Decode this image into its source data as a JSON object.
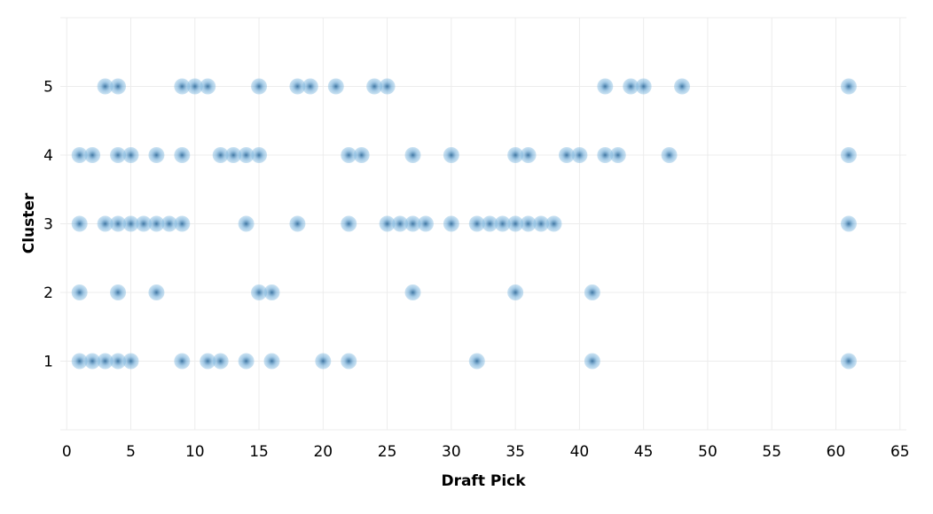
{
  "chart_data": {
    "type": "scatter",
    "title": "",
    "xlabel": "Draft Pick",
    "ylabel": "Cluster",
    "xlim": [
      -0.5,
      65.5
    ],
    "ylim": [
      0,
      6
    ],
    "xticks": [
      0,
      5,
      10,
      15,
      20,
      25,
      30,
      35,
      40,
      45,
      50,
      55,
      60,
      65
    ],
    "yticks": [
      1,
      2,
      3,
      4,
      5
    ],
    "grid": true,
    "point_color": "#5b9fd1",
    "series": [
      {
        "cluster": 1,
        "x": [
          1,
          2,
          3,
          4,
          5,
          9,
          11,
          12,
          14,
          16,
          20,
          22,
          32,
          41,
          61
        ]
      },
      {
        "cluster": 2,
        "x": [
          1,
          4,
          7,
          15,
          16,
          27,
          35,
          41
        ]
      },
      {
        "cluster": 3,
        "x": [
          1,
          3,
          4,
          5,
          6,
          7,
          8,
          9,
          14,
          18,
          22,
          25,
          26,
          27,
          28,
          30,
          32,
          33,
          34,
          35,
          36,
          37,
          38,
          61
        ]
      },
      {
        "cluster": 4,
        "x": [
          1,
          2,
          4,
          5,
          7,
          9,
          12,
          13,
          14,
          15,
          22,
          23,
          27,
          30,
          35,
          36,
          39,
          40,
          42,
          43,
          47,
          61
        ]
      },
      {
        "cluster": 5,
        "x": [
          3,
          4,
          9,
          10,
          11,
          15,
          18,
          19,
          21,
          24,
          25,
          42,
          44,
          45,
          48,
          61
        ]
      }
    ]
  }
}
